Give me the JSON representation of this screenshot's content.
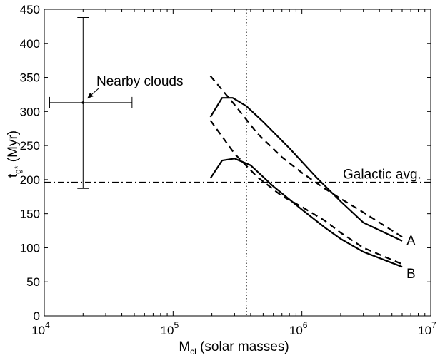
{
  "chart_data": {
    "type": "line",
    "xlabel": "M",
    "xlabel_sub": "cl",
    "xlabel_rest": " (solar masses)",
    "ylabel": "t",
    "ylabel_sub": "g*",
    "ylabel_rest": " (Myr)",
    "x_scale": "log",
    "xlim": [
      10000,
      10000000
    ],
    "ylim": [
      0,
      450
    ],
    "x_ticks": [
      {
        "base": "10",
        "exp": "4",
        "value": 10000
      },
      {
        "base": "10",
        "exp": "5",
        "value": 100000
      },
      {
        "base": "10",
        "exp": "6",
        "value": 1000000
      },
      {
        "base": "10",
        "exp": "7",
        "value": 10000000
      }
    ],
    "y_ticks": [
      0,
      50,
      100,
      150,
      200,
      250,
      300,
      350,
      400,
      450
    ],
    "grid": false,
    "series": [
      {
        "name": "A",
        "style": "solid",
        "x": [
          195000,
          240000,
          290000,
          370000,
          500000,
          800000,
          1300000,
          2000000,
          3000000,
          6000000
        ],
        "y": [
          292,
          320,
          320,
          308,
          285,
          246,
          203,
          168,
          137,
          110
        ]
      },
      {
        "name": "",
        "style": "dashed",
        "x": [
          195000,
          300000,
          450000,
          700000,
          1000000,
          1500000,
          2000000,
          3000000,
          6000000
        ],
        "y": [
          352,
          310,
          268,
          233,
          210,
          187,
          172,
          152,
          116
        ]
      },
      {
        "name": "B",
        "style": "solid",
        "x": [
          195000,
          240000,
          300000,
          400000,
          600000,
          1000000,
          1500000,
          2000000,
          3000000,
          6000000
        ],
        "y": [
          202,
          228,
          231,
          221,
          190,
          156,
          130,
          113,
          94,
          72
        ]
      },
      {
        "name": "",
        "style": "dashed",
        "x": [
          195000,
          300000,
          450000,
          700000,
          1000000,
          1500000,
          2000000,
          3000000,
          6000000
        ],
        "y": [
          287,
          238,
          204,
          176,
          160,
          140,
          122,
          100,
          76
        ]
      }
    ],
    "reference_lines": [
      {
        "orientation": "horizontal",
        "value": 196,
        "style": "dashdot",
        "label": "Galactic avg."
      },
      {
        "orientation": "vertical",
        "value": 370000,
        "style": "dotted",
        "label": ""
      }
    ],
    "errorbar_point": {
      "x": 20000,
      "y": 313,
      "xerr": [
        11000,
        48000
      ],
      "yerr": [
        187,
        438
      ],
      "label": "Nearby clouds"
    }
  }
}
